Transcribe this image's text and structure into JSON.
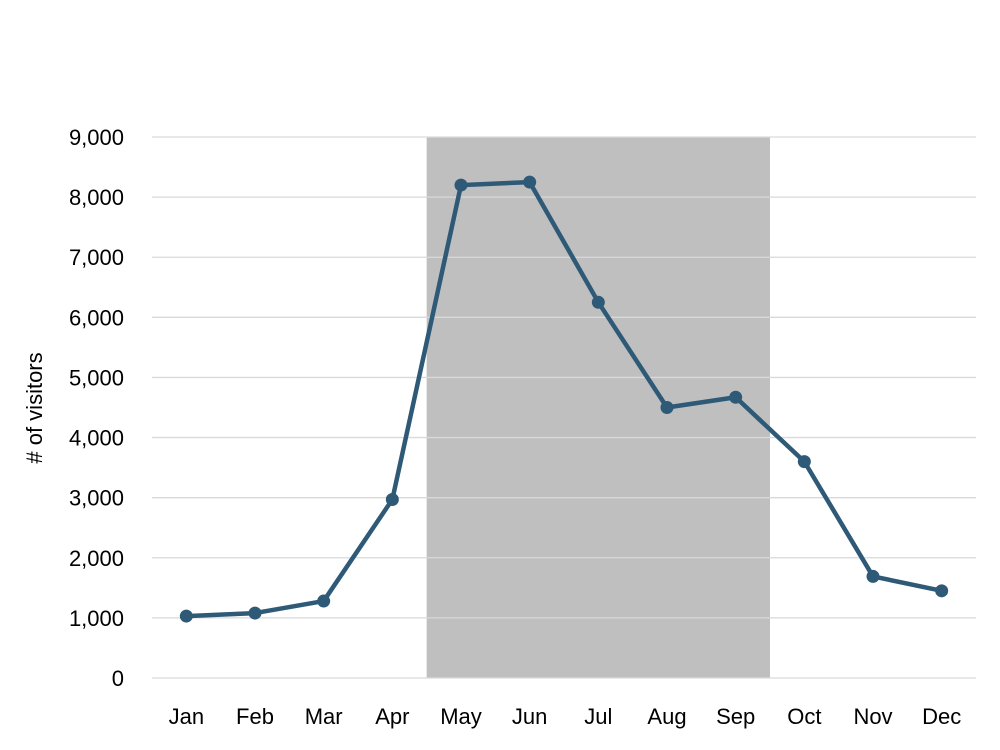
{
  "chart_data": {
    "type": "line",
    "title": "",
    "xlabel": "",
    "ylabel": "# of visitors",
    "categories": [
      "Jan",
      "Feb",
      "Mar",
      "Apr",
      "May",
      "Jun",
      "Jul",
      "Aug",
      "Sep",
      "Oct",
      "Nov",
      "Dec"
    ],
    "series": [
      {
        "values": [
          1030,
          1080,
          1280,
          2970,
          8200,
          8250,
          6250,
          4500,
          4670,
          3600,
          1690,
          1450
        ]
      }
    ],
    "ylim": [
      0,
      9000
    ],
    "yticks": [
      0,
      1000,
      2000,
      3000,
      4000,
      5000,
      6000,
      7000,
      8000,
      9000
    ],
    "ytick_labels": [
      "0",
      "1,000",
      "2,000",
      "3,000",
      "4,000",
      "5,000",
      "6,000",
      "7,000",
      "8,000",
      "9,000"
    ],
    "highlight_band": {
      "from": "May",
      "to": "Sep",
      "color": "#bfbfbf"
    },
    "grid": true,
    "legend": "none",
    "colors": {
      "line": "#2e5a77",
      "grid": "#d9d9d9",
      "band": "#bfbfbf"
    }
  }
}
